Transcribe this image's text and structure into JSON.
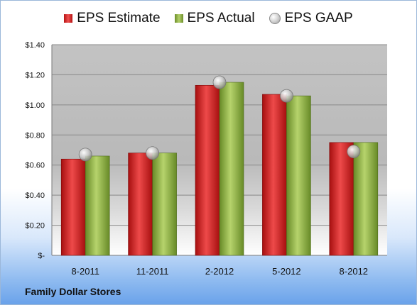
{
  "chart_data": {
    "type": "bar",
    "categories": [
      "8-2011",
      "11-2011",
      "2-2012",
      "5-2012",
      "8-2012"
    ],
    "series": [
      {
        "name": "EPS Estimate",
        "type": "bar",
        "color": "#d42020",
        "values": [
          0.64,
          0.68,
          1.13,
          1.07,
          0.75
        ]
      },
      {
        "name": "EPS Actual",
        "type": "bar",
        "color": "#8fb046",
        "values": [
          0.66,
          0.68,
          1.15,
          1.06,
          0.75
        ]
      },
      {
        "name": "EPS GAAP",
        "type": "marker",
        "color": "#c0c0c0",
        "values": [
          0.67,
          0.68,
          1.15,
          1.06,
          0.69
        ]
      }
    ],
    "yticks": [
      "$-",
      "$0.20",
      "$0.40",
      "$0.60",
      "$0.80",
      "$1.00",
      "$1.20",
      "$1.40"
    ],
    "ylim": [
      0,
      1.4
    ],
    "legend": "top",
    "grid": true,
    "title": "",
    "xlabel": "",
    "ylabel": ""
  },
  "footer": {
    "company": "Family Dollar Stores"
  }
}
